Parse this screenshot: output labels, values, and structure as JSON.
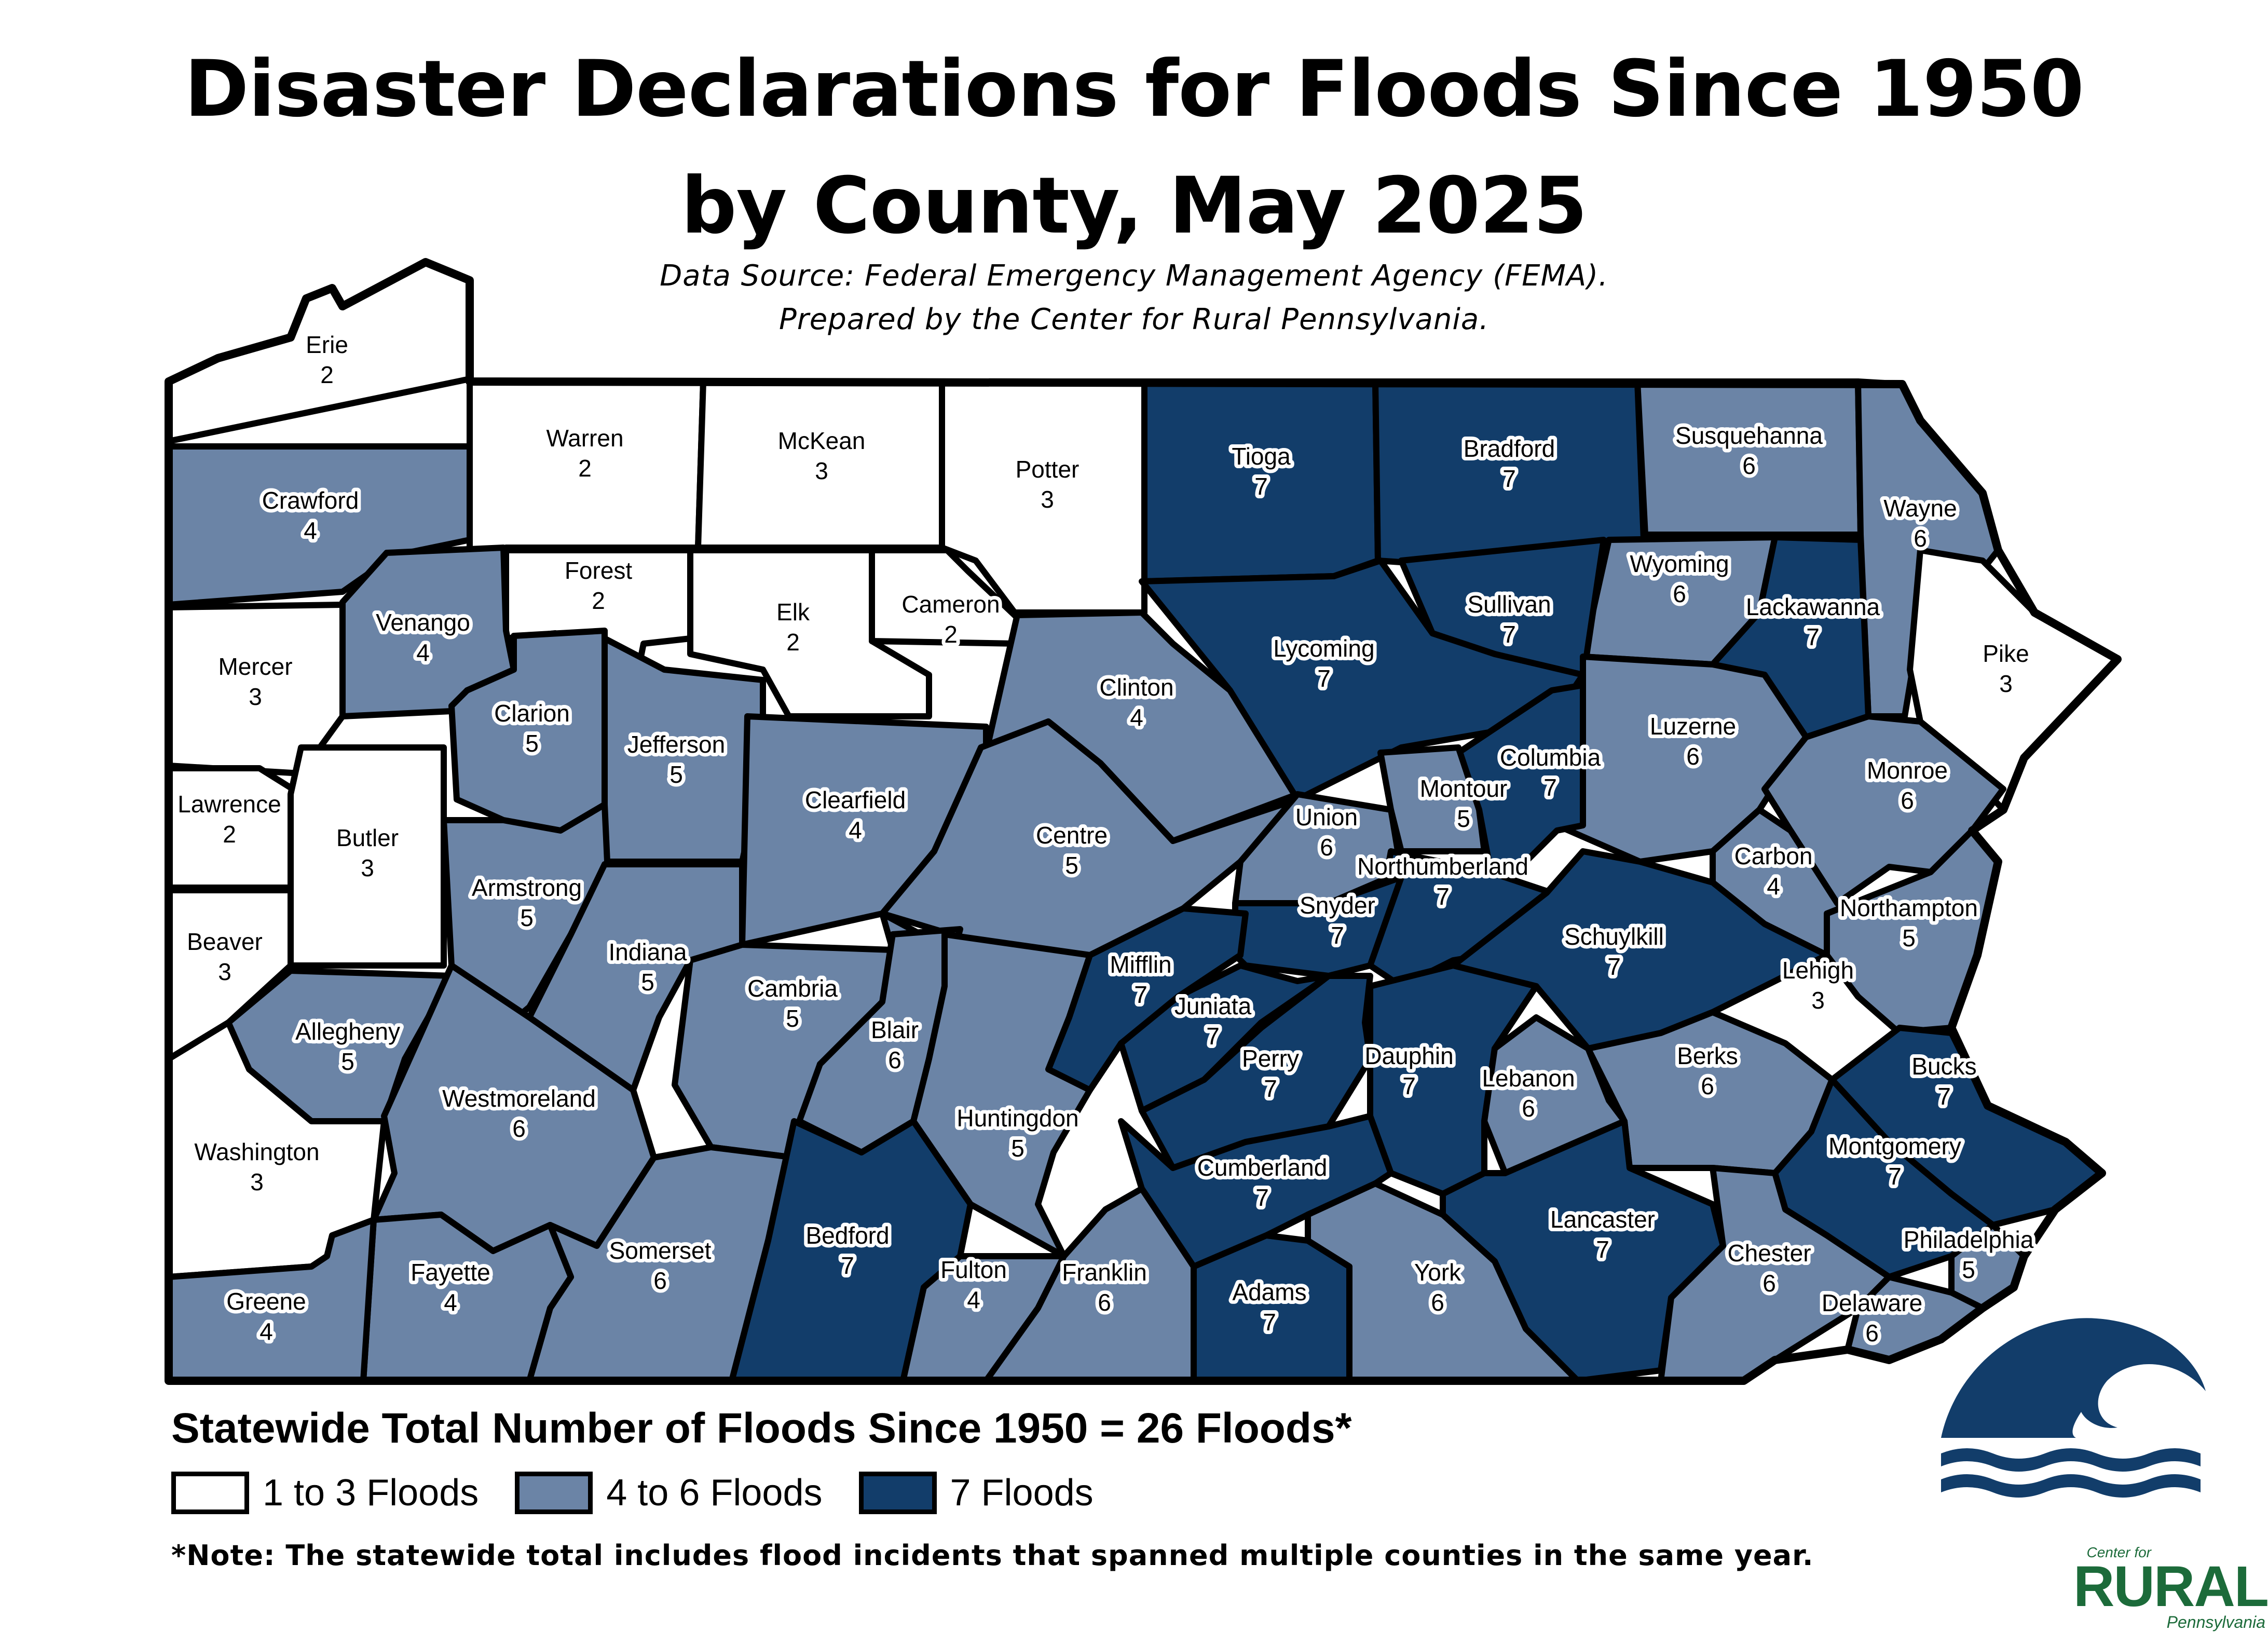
{
  "title": {
    "line1": "Disaster Declarations for Floods Since 1950",
    "line2": "by County, May 2025"
  },
  "source": {
    "line1": "Data Source: Federal Emergency Management Agency (FEMA).",
    "line2": "Prepared by the Center for Rural Pennsylvania."
  },
  "statewide_total": "Statewide Total Number of Floods Since 1950 = 26 Floods*",
  "legend": {
    "items": [
      {
        "label": "1 to 3 Floods",
        "color": "#ffffff"
      },
      {
        "label": "4 to 6 Floods",
        "color": "#6b84a6"
      },
      {
        "label": "7 Floods",
        "color": "#123d6a"
      }
    ]
  },
  "note": "*Note: The statewide total includes flood incidents that spanned multiple counties in the same year.",
  "logo": {
    "top": "Center for",
    "main": "RURAL",
    "bottom": "Pennsylvania"
  },
  "icons": {
    "wave": "wave-icon",
    "logo": "center-for-rural-pennsylvania-logo"
  },
  "counties": [
    {
      "name": "Erie",
      "count": 2
    },
    {
      "name": "Warren",
      "count": 2
    },
    {
      "name": "McKean",
      "count": 3
    },
    {
      "name": "Potter",
      "count": 3
    },
    {
      "name": "Tioga",
      "count": 7
    },
    {
      "name": "Bradford",
      "count": 7
    },
    {
      "name": "Susquehanna",
      "count": 6
    },
    {
      "name": "Wayne",
      "count": 6
    },
    {
      "name": "Crawford",
      "count": 4
    },
    {
      "name": "Forest",
      "count": 2
    },
    {
      "name": "Elk",
      "count": 2
    },
    {
      "name": "Cameron",
      "count": 2
    },
    {
      "name": "Wyoming",
      "count": 6
    },
    {
      "name": "Lackawanna",
      "count": 7
    },
    {
      "name": "Sullivan",
      "count": 7
    },
    {
      "name": "Pike",
      "count": 3
    },
    {
      "name": "Mercer",
      "count": 3
    },
    {
      "name": "Venango",
      "count": 4
    },
    {
      "name": "Clarion",
      "count": 5
    },
    {
      "name": "Jefferson",
      "count": 5
    },
    {
      "name": "Clinton",
      "count": 4
    },
    {
      "name": "Lycoming",
      "count": 7
    },
    {
      "name": "Luzerne",
      "count": 6
    },
    {
      "name": "Columbia",
      "count": 7
    },
    {
      "name": "Montour",
      "count": 5
    },
    {
      "name": "Monroe",
      "count": 6
    },
    {
      "name": "Lawrence",
      "count": 2
    },
    {
      "name": "Butler",
      "count": 3
    },
    {
      "name": "Clearfield",
      "count": 4
    },
    {
      "name": "Centre",
      "count": 5
    },
    {
      "name": "Union",
      "count": 6
    },
    {
      "name": "Northumberland",
      "count": 7
    },
    {
      "name": "Carbon",
      "count": 4
    },
    {
      "name": "Beaver",
      "count": 3
    },
    {
      "name": "Armstrong",
      "count": 5
    },
    {
      "name": "Indiana",
      "count": 5
    },
    {
      "name": "Snyder",
      "count": 7
    },
    {
      "name": "Schuylkill",
      "count": 7
    },
    {
      "name": "Northampton",
      "count": 5
    },
    {
      "name": "Lehigh",
      "count": 3
    },
    {
      "name": "Allegheny",
      "count": 5
    },
    {
      "name": "Cambria",
      "count": 5
    },
    {
      "name": "Mifflin",
      "count": 7
    },
    {
      "name": "Juniata",
      "count": 7
    },
    {
      "name": "Blair",
      "count": 6
    },
    {
      "name": "Perry",
      "count": 7
    },
    {
      "name": "Dauphin",
      "count": 7
    },
    {
      "name": "Lebanon",
      "count": 6
    },
    {
      "name": "Berks",
      "count": 6
    },
    {
      "name": "Bucks",
      "count": 7
    },
    {
      "name": "Westmoreland",
      "count": 6
    },
    {
      "name": "Huntingdon",
      "count": 5
    },
    {
      "name": "Montgomery",
      "count": 7
    },
    {
      "name": "Washington",
      "count": 3
    },
    {
      "name": "Cumberland",
      "count": 7
    },
    {
      "name": "Lancaster",
      "count": 7
    },
    {
      "name": "Philadelphia",
      "count": 5
    },
    {
      "name": "Somerset",
      "count": 6
    },
    {
      "name": "Bedford",
      "count": 7
    },
    {
      "name": "Chester",
      "count": 6
    },
    {
      "name": "Fayette",
      "count": 4
    },
    {
      "name": "Fulton",
      "count": 4
    },
    {
      "name": "Franklin",
      "count": 6
    },
    {
      "name": "Adams",
      "count": 7
    },
    {
      "name": "York",
      "count": 6
    },
    {
      "name": "Delaware",
      "count": 6
    },
    {
      "name": "Greene",
      "count": 4
    }
  ]
}
